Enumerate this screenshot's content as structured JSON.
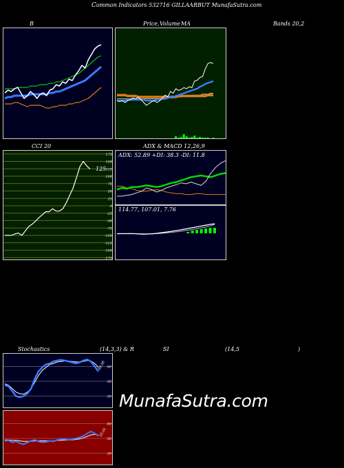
{
  "header": {
    "title_c": "C",
    "title_rest": "ommon  Indicators 532716  GILLAARBUT MunafaSutra.com"
  },
  "labels": {
    "b": "B",
    "price": "Price,",
    "volume": "Volume",
    "ma": "MA",
    "bands": "Bands 20,2",
    "cci": "CCI 20",
    "adx": "ADX  & MACD 12,26,9",
    "stoch_left": "Stochastics",
    "stoch_params": "(14,3,3) & R",
    "rsi_si": "SI",
    "rsi_params": "(14,5",
    "rsi_close": ")",
    "watermark": "MunafaSutra.com"
  },
  "adx_text": "ADX: 52.89  +DI: 38.3  -DI: 11.8",
  "macd_text": "114.77,  107.01,  7.76",
  "cci_value_label": "125",
  "stoch_value_label": "68.08",
  "rsi_value_label": "55.01",
  "cci_ticks": [
    "175",
    "150",
    "125",
    "100",
    "75",
    "50",
    "25",
    "0",
    "-25",
    "-50",
    "-75",
    "-100",
    "-125",
    "-150",
    "-175"
  ],
  "stoch_ticks": [
    "80",
    "50",
    "20"
  ],
  "rsi_ticks": [
    "80",
    "50",
    "20"
  ],
  "colors": {
    "bg": "#000000",
    "bands_bg": "#000022",
    "ma_bg": "#002000",
    "cci_bg": "#002000",
    "rsi_bg": "#880000",
    "price_white": "#ffffff",
    "ma_blue": "#3b7bff",
    "ma_orange": "#e07b10",
    "ma_green": "#00cc00",
    "volume_green": "#00ff00",
    "adx_green": "#00dd00"
  },
  "chart_data": [
    {
      "type": "line",
      "name": "bollinger-bands",
      "title": "Bands 20,2",
      "series": [
        {
          "name": "price",
          "values": [
            44,
            46,
            45,
            47,
            48,
            44,
            40,
            42,
            45,
            43,
            40,
            43,
            44,
            42,
            46,
            47,
            50,
            49,
            52,
            51,
            54,
            53,
            57,
            60,
            64,
            62,
            68,
            72,
            76,
            78,
            79
          ]
        },
        {
          "name": "upper",
          "values": [
            47,
            47,
            47,
            47,
            48,
            48,
            48,
            48,
            49,
            49,
            49,
            50,
            50,
            50,
            51,
            51,
            52,
            52,
            53,
            54,
            55,
            56,
            57,
            58,
            60,
            62,
            64,
            66,
            68,
            70,
            71
          ]
        },
        {
          "name": "middle",
          "values": [
            40,
            41,
            41,
            42,
            42,
            42,
            42,
            42,
            43,
            43,
            43,
            43,
            43,
            43,
            44,
            44,
            45,
            45,
            46,
            47,
            48,
            49,
            50,
            51,
            52,
            53,
            55,
            57,
            59,
            61,
            63
          ]
        },
        {
          "name": "lower",
          "values": [
            36,
            36,
            36,
            37,
            37,
            36,
            35,
            34,
            35,
            35,
            35,
            35,
            34,
            33,
            33,
            34,
            34,
            35,
            35,
            35,
            36,
            36,
            37,
            37,
            38,
            39,
            40,
            42,
            44,
            46,
            48
          ]
        }
      ]
    },
    {
      "type": "line",
      "name": "price-volume-ma",
      "series": [
        {
          "name": "price",
          "values": [
            52,
            51,
            52,
            50,
            52,
            53,
            55,
            54,
            56,
            53,
            50,
            47,
            49,
            51,
            52,
            50,
            52,
            55,
            58,
            56,
            62,
            60,
            65,
            63,
            64,
            66,
            65,
            67,
            66,
            73,
            74,
            77,
            78,
            86,
            92,
            93,
            92
          ]
        },
        {
          "name": "ma-blue",
          "values": [
            52,
            52,
            52,
            52,
            53,
            53,
            53,
            53,
            53,
            53,
            53,
            52,
            52,
            52,
            52,
            53,
            53,
            54,
            54,
            55,
            56,
            56,
            57,
            58,
            59,
            60,
            61,
            62,
            63,
            64,
            65,
            67,
            68,
            70,
            71,
            72,
            73
          ]
        },
        {
          "name": "ma-orange",
          "values": [
            58,
            58,
            58,
            58,
            57,
            57,
            57,
            57,
            56,
            56,
            56,
            56,
            56,
            56,
            56,
            56,
            56,
            56,
            56,
            56,
            56,
            56,
            56,
            57,
            57,
            57,
            57,
            57,
            57,
            57,
            57,
            57,
            57,
            57,
            58,
            58,
            58
          ]
        },
        {
          "name": "ma-white",
          "values": [
            54,
            54,
            54,
            54,
            54,
            54,
            54,
            54,
            54,
            54,
            54,
            54,
            54,
            54,
            54,
            54,
            54,
            54,
            55,
            55,
            55,
            55,
            56,
            56,
            56,
            57,
            57,
            57,
            58,
            58,
            58,
            58,
            59,
            59,
            59,
            60,
            60
          ]
        },
        {
          "name": "volume",
          "values": [
            0,
            0,
            0,
            0,
            0,
            0,
            0,
            0,
            0,
            0,
            0,
            0,
            0,
            0,
            0,
            0,
            0,
            0,
            0,
            0,
            0,
            0,
            3,
            1,
            2,
            6,
            3,
            1,
            2,
            4,
            1,
            2,
            1,
            1,
            1,
            0,
            1
          ]
        }
      ]
    },
    {
      "type": "line",
      "name": "cci",
      "title": "CCI 20",
      "ylim": [
        -175,
        175
      ],
      "series": [
        {
          "name": "cci",
          "values": [
            -100,
            -100,
            -100,
            -95,
            -92,
            -100,
            -85,
            -70,
            -62,
            -52,
            -40,
            -30,
            -20,
            -20,
            -10,
            -18,
            -18,
            -10,
            10,
            35,
            60,
            95,
            132,
            150,
            135,
            124
          ]
        }
      ]
    },
    {
      "type": "line",
      "name": "adx",
      "series": [
        {
          "name": "adx",
          "values": [
            10,
            10,
            11,
            12,
            14,
            16,
            20,
            18,
            15,
            17,
            20,
            22,
            24,
            26,
            25,
            27,
            25,
            23,
            28,
            38,
            45,
            50,
            53
          ]
        },
        {
          "name": "plus_di",
          "values": [
            18,
            20,
            19,
            21,
            21,
            22,
            23,
            22,
            21,
            22,
            24,
            26,
            27,
            29,
            31,
            33,
            34,
            35,
            34,
            33,
            35,
            37,
            38
          ]
        },
        {
          "name": "minus_di",
          "values": [
            22,
            22,
            20,
            19,
            17,
            16,
            16,
            17,
            18,
            17,
            15,
            14,
            13,
            13,
            12,
            12,
            13,
            13,
            12,
            12,
            12,
            12,
            12
          ]
        }
      ]
    },
    {
      "type": "line",
      "name": "macd",
      "series": [
        {
          "name": "macd",
          "values": [
            -5,
            -4,
            -4,
            -3,
            -4,
            -8,
            -10,
            -8,
            -5,
            0,
            8,
            14,
            22,
            30,
            38,
            48,
            58,
            68,
            78,
            88,
            98,
            108,
            115
          ]
        },
        {
          "name": "signal",
          "values": [
            -3,
            -3,
            -4,
            -4,
            -4,
            -5,
            -6,
            -6,
            -6,
            -4,
            0,
            4,
            10,
            16,
            22,
            30,
            38,
            46,
            56,
            66,
            76,
            90,
            107
          ]
        },
        {
          "name": "histogram",
          "values": [
            0,
            0,
            0,
            0,
            0,
            0,
            0,
            0,
            0,
            0,
            0,
            0,
            0,
            0,
            0,
            0,
            2,
            4,
            5,
            6,
            7,
            8,
            8
          ]
        }
      ]
    },
    {
      "type": "line",
      "name": "stochastics",
      "ylim": [
        0,
        100
      ],
      "series": [
        {
          "name": "k",
          "values": [
            42,
            40,
            30,
            20,
            18,
            20,
            25,
            35,
            55,
            70,
            78,
            84,
            86,
            90,
            92,
            93,
            92,
            90,
            88,
            86,
            88,
            92,
            94,
            90,
            80,
            70
          ]
        },
        {
          "name": "d",
          "values": [
            45,
            42,
            35,
            28,
            25,
            24,
            28,
            35,
            48,
            62,
            72,
            78,
            84,
            86,
            89,
            90,
            91,
            91,
            90,
            89,
            89,
            90,
            92,
            91,
            86,
            78
          ]
        }
      ]
    },
    {
      "type": "line",
      "name": "rsi",
      "ylim": [
        0,
        100
      ],
      "series": [
        {
          "name": "rsi",
          "values": [
            45,
            46,
            42,
            44,
            40,
            38,
            42,
            45,
            47,
            44,
            42,
            43,
            45,
            44,
            47,
            48,
            49,
            47,
            48,
            50,
            52,
            55,
            60,
            64,
            60,
            55
          ]
        },
        {
          "name": "signal",
          "values": [
            47,
            47,
            46,
            46,
            45,
            44,
            44,
            44,
            45,
            45,
            45,
            45,
            45,
            45,
            46,
            46,
            47,
            47,
            47,
            48,
            49,
            51,
            54,
            57,
            58,
            57
          ]
        }
      ]
    }
  ]
}
